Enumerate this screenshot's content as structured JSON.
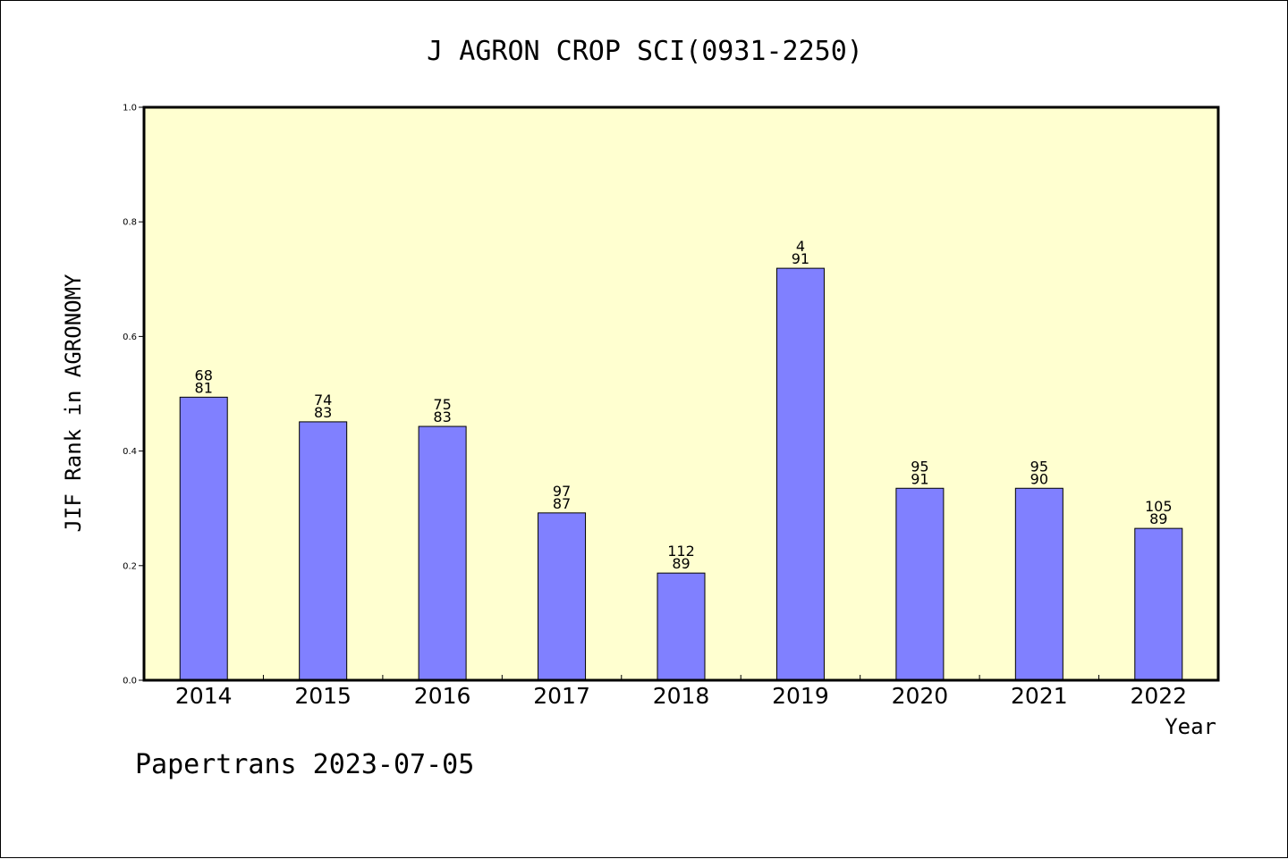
{
  "chart_data": {
    "type": "bar",
    "title": "J AGRON CROP SCI(0931-2250)",
    "xlabel": "Year",
    "ylabel": "JIF Rank in AGRONOMY",
    "ylim": [
      0,
      1.0
    ],
    "yticks": [
      "0.0",
      "0.2",
      "0.4",
      "0.6",
      "0.8",
      "1.0"
    ],
    "categories": [
      "2014",
      "2015",
      "2016",
      "2017",
      "2018",
      "2019",
      "2020",
      "2021",
      "2022"
    ],
    "values": [
      0.494,
      0.451,
      0.443,
      0.292,
      0.187,
      0.719,
      0.335,
      0.335,
      0.265
    ],
    "label_top": [
      "68",
      "74",
      "75",
      "97",
      "112",
      "4",
      "95",
      "95",
      "105"
    ],
    "label_bottom": [
      "81",
      "83",
      "83",
      "87",
      "89",
      "91",
      "91",
      "90",
      "89"
    ],
    "grid": false,
    "colors": {
      "bar_fill": "#8080ff",
      "plot_background": "#ffffd0",
      "axis": "#000000"
    }
  },
  "footer": {
    "text": "Papertrans 2023-07-05"
  }
}
